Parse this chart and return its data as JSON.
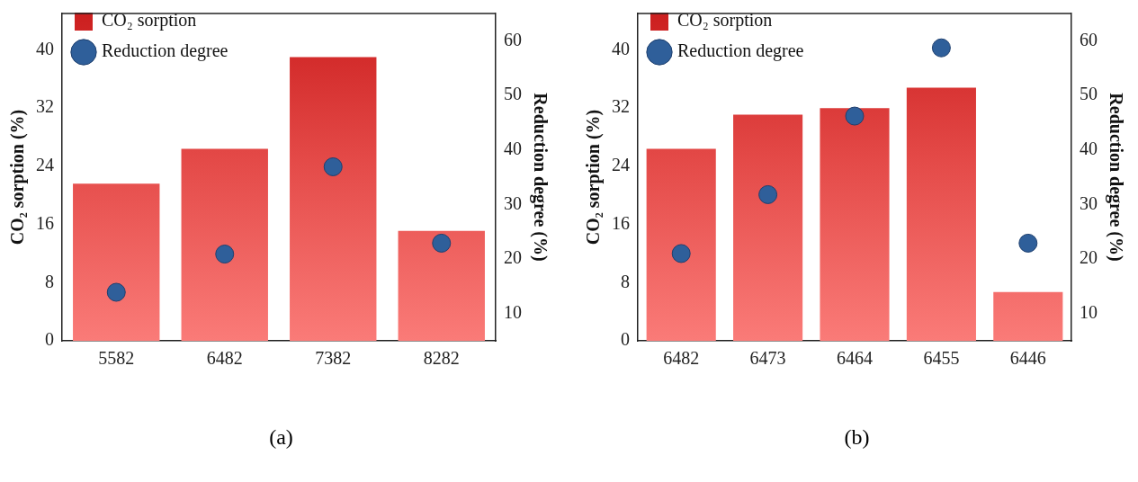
{
  "chart_data": [
    {
      "type": "bar",
      "categories": [
        "5582",
        "6482",
        "7382",
        "8282"
      ],
      "ylabel": "CO₂ sorption (%)",
      "y2label": "Reduction degree (%)",
      "ylim": [
        0,
        45
      ],
      "yticks": [
        0,
        8,
        16,
        24,
        32,
        40
      ],
      "y2lim": [
        5,
        65
      ],
      "y2ticks": [
        10,
        20,
        30,
        40,
        50,
        60
      ],
      "grid": false,
      "legend": "top left",
      "marker": "circle",
      "annotations": [
        "(a)"
      ],
      "series": [
        {
          "name": "CO₂ sorption",
          "color": "#e44a48",
          "values": [
            21.6,
            26.4,
            39.0,
            15.1
          ]
        },
        {
          "name": "Reduction degree",
          "type": "scatter",
          "axis": "y2",
          "color": "#2f5f9a",
          "values": [
            13.9,
            20.9,
            36.9,
            22.9
          ]
        }
      ]
    },
    {
      "type": "bar",
      "categories": [
        "6482",
        "6473",
        "6464",
        "6455",
        "6446"
      ],
      "ylabel": "CO₂ sorption (%)",
      "y2label": "Reduction degree (%)",
      "ylim": [
        0,
        45
      ],
      "yticks": [
        0,
        8,
        16,
        24,
        32,
        40
      ],
      "y2lim": [
        5,
        65
      ],
      "y2ticks": [
        10,
        20,
        30,
        40,
        50,
        60
      ],
      "grid": false,
      "legend": "top left",
      "marker": "circle",
      "annotations": [
        "(b)"
      ],
      "series": [
        {
          "name": "CO₂ sorption",
          "color": "#e44a48",
          "values": [
            26.4,
            31.1,
            32.0,
            34.8,
            6.7
          ]
        },
        {
          "name": "Reduction degree",
          "type": "scatter",
          "axis": "y2",
          "color": "#2f5f9a",
          "values": [
            21.0,
            31.8,
            46.2,
            58.7,
            22.9
          ]
        }
      ]
    }
  ]
}
